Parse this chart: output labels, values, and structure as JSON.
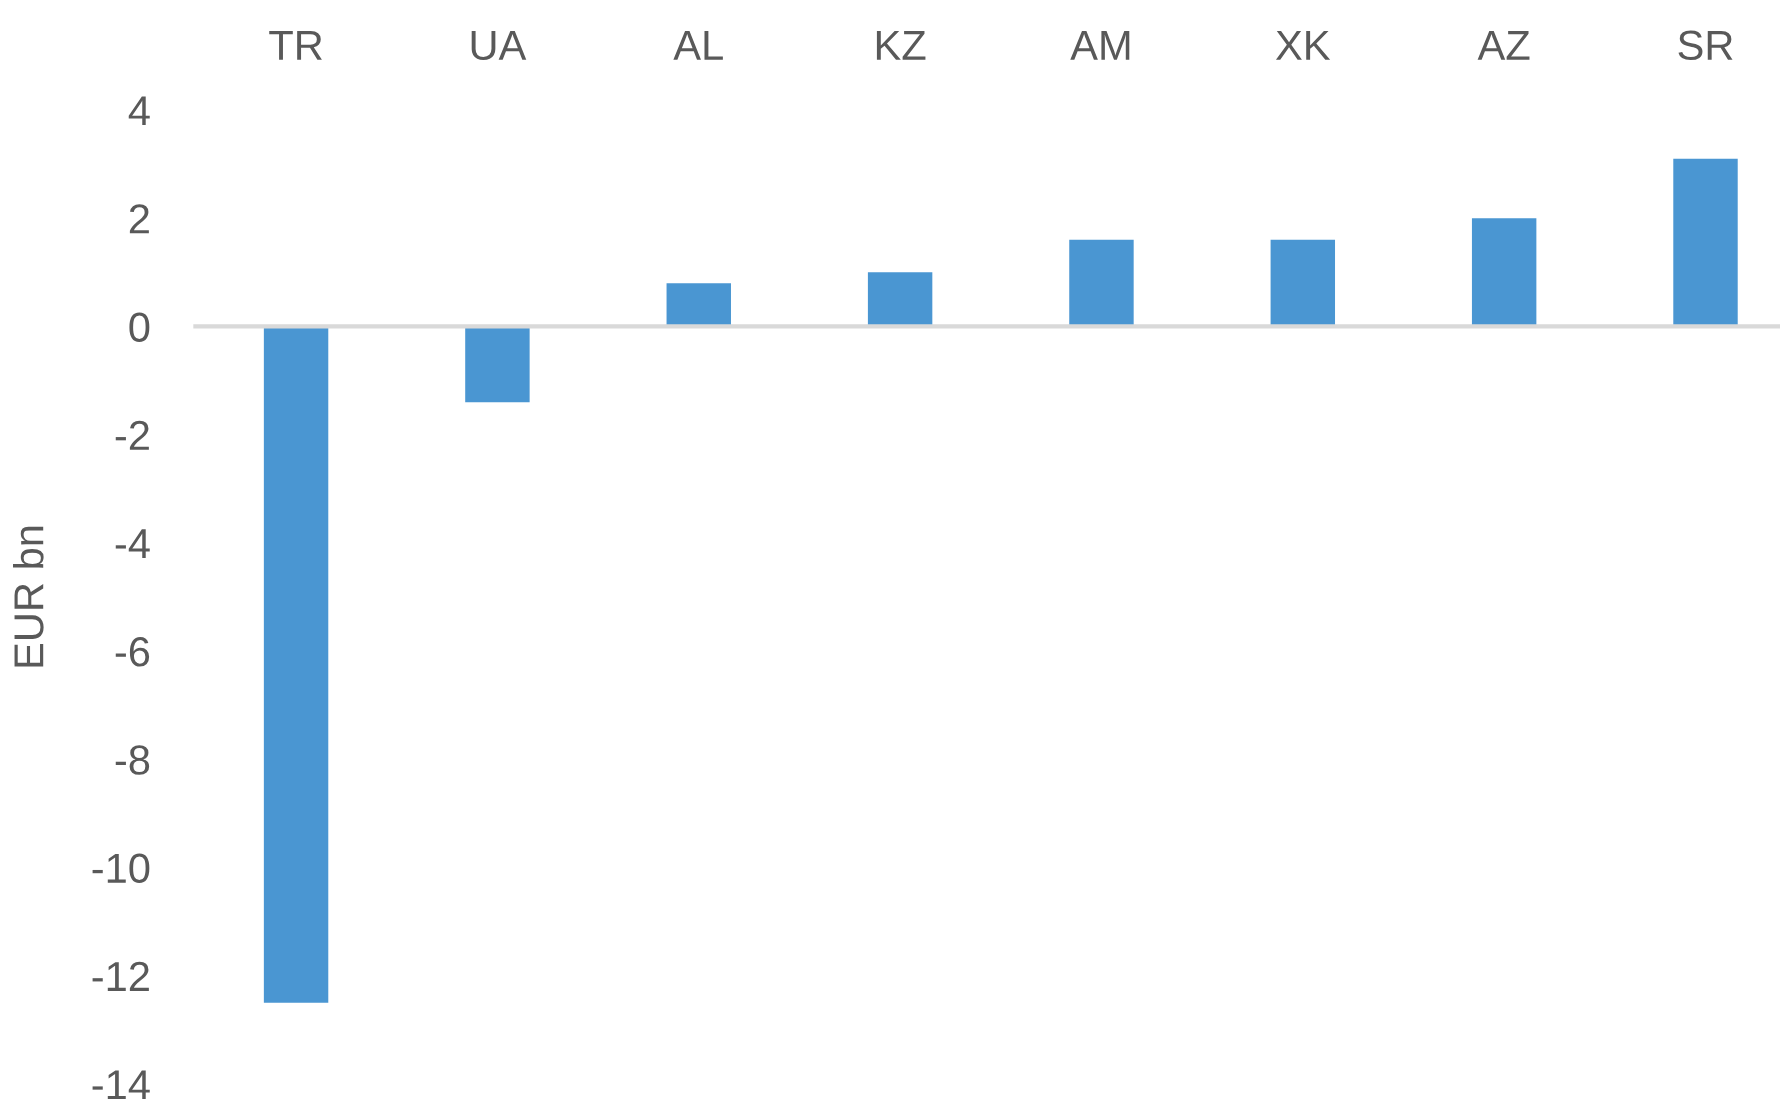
{
  "chart_data": {
    "type": "bar",
    "categories": [
      "TR",
      "UA",
      "AL",
      "KZ",
      "AM",
      "XK",
      "AZ",
      "SR"
    ],
    "values": [
      -12.5,
      -1.4,
      0.8,
      1.0,
      1.6,
      1.6,
      2.0,
      3.1
    ],
    "color": "#4a96d2",
    "ylabel": "EUR bn",
    "ylim": [
      -14,
      4
    ],
    "yticks": [
      -14,
      -12,
      -10,
      -8,
      -6,
      -4,
      -2,
      0,
      2,
      4
    ]
  }
}
